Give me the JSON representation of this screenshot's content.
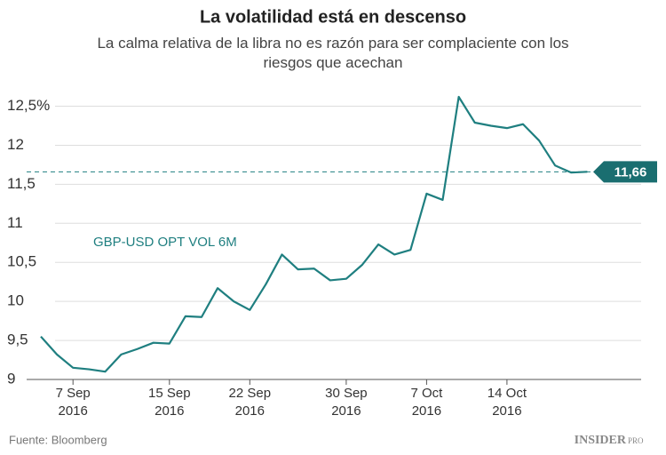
{
  "chart_data": {
    "type": "line",
    "title": "La volatilidad está en descenso",
    "subtitle": "La calma relativa de la libra no es razón para ser complaciente con los riesgos que acechan",
    "categories": [
      null,
      null,
      "7 Sep 2016",
      null,
      null,
      null,
      null,
      null,
      "15 Sep 2016",
      null,
      null,
      null,
      null,
      "22 Sep 2016",
      null,
      null,
      null,
      null,
      null,
      "30 Sep 2016",
      null,
      null,
      null,
      null,
      "7 Oct 2016",
      null,
      null,
      null,
      null,
      "14 Oct 2016",
      null,
      null,
      null,
      null,
      null
    ],
    "series": [
      {
        "name": "GBP-USD OPT VOL 6M",
        "color": "#1f7f80",
        "values": [
          9.55,
          9.32,
          9.15,
          9.13,
          9.1,
          9.32,
          9.39,
          9.47,
          9.46,
          9.81,
          9.8,
          10.17,
          10,
          9.89,
          10.22,
          10.6,
          10.41,
          10.42,
          10.27,
          10.29,
          10.47,
          10.73,
          10.6,
          10.66,
          11.38,
          11.3,
          12.62,
          12.29,
          12.25,
          12.22,
          12.27,
          12.06,
          11.74,
          11.65,
          11.66
        ]
      }
    ],
    "reference_line": {
      "value": 11.66,
      "label": "11,66"
    },
    "ylim": [
      9,
      12.62
    ],
    "yticks": [
      9,
      {
        "value": 9.5,
        "label": "9,5"
      },
      10,
      {
        "value": 10.5,
        "label": "10,5"
      },
      11,
      {
        "value": 11.5,
        "label": "11,5"
      },
      12,
      {
        "value": 12.5,
        "label": "12,5%"
      }
    ],
    "grid": true,
    "source": "Fuente: Bloomberg",
    "brand": "INSIDER",
    "brand_suffix": "PRO"
  }
}
